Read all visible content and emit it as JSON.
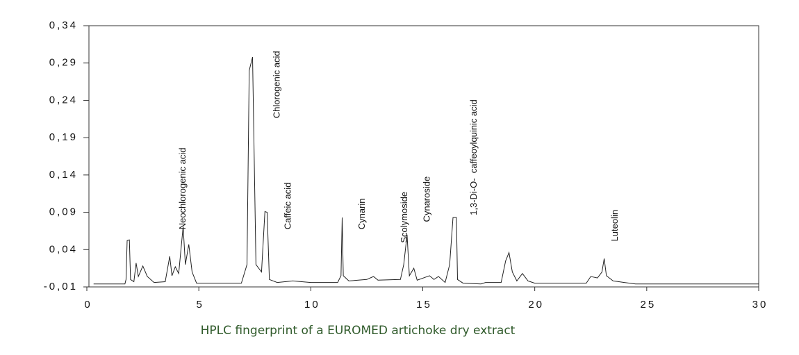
{
  "chart_data": {
    "type": "line",
    "caption": "HPLC fingerprint of a EUROMED artichoke dry extract",
    "xlim": [
      0,
      30
    ],
    "xticks": [
      0,
      5,
      10,
      15,
      20,
      25,
      30
    ],
    "ylim": [
      -0.01,
      0.34
    ],
    "yticks": [
      {
        "value": -0.01,
        "label": "-0,01"
      },
      {
        "value": 0.04,
        "label": "0,04"
      },
      {
        "value": 0.09,
        "label": "0,09"
      },
      {
        "value": 0.14,
        "label": "0,14"
      },
      {
        "value": 0.19,
        "label": "0,19"
      },
      {
        "value": 0.24,
        "label": "0,24"
      },
      {
        "value": 0.29,
        "label": "0,29"
      },
      {
        "value": 0.34,
        "label": "0,34"
      }
    ],
    "x": [
      0.3,
      1.7,
      1.75,
      1.8,
      1.9,
      1.95,
      2.1,
      2.2,
      2.3,
      2.5,
      2.7,
      3.0,
      3.5,
      3.7,
      3.8,
      3.95,
      4.1,
      4.3,
      4.4,
      4.55,
      4.7,
      4.9,
      6.9,
      7.15,
      7.25,
      7.4,
      7.55,
      7.8,
      7.95,
      8.05,
      8.15,
      8.5,
      9.2,
      10.0,
      11.2,
      11.35,
      11.4,
      11.45,
      11.7,
      12.5,
      12.8,
      13.0,
      14.0,
      14.15,
      14.3,
      14.4,
      14.6,
      14.75,
      15.3,
      15.5,
      15.7,
      16.0,
      16.2,
      16.35,
      16.5,
      16.55,
      16.8,
      17.6,
      17.8,
      18.5,
      18.7,
      18.85,
      19.0,
      19.2,
      19.45,
      19.7,
      20.0,
      22.3,
      22.5,
      22.8,
      23.0,
      23.1,
      23.2,
      23.5,
      24.0,
      24.5,
      30.0
    ],
    "series": [
      {
        "color": "#222222",
        "values": [
          -0.006,
          -0.006,
          0.0,
          0.052,
          0.053,
          0.0,
          -0.003,
          0.022,
          0.004,
          0.018,
          0.004,
          -0.004,
          -0.003,
          0.031,
          0.005,
          0.017,
          0.008,
          0.071,
          0.02,
          0.047,
          0.01,
          -0.005,
          -0.005,
          0.02,
          0.28,
          0.298,
          0.02,
          0.01,
          0.091,
          0.09,
          0.0,
          -0.004,
          -0.002,
          -0.004,
          -0.004,
          0.005,
          0.083,
          0.005,
          -0.002,
          0.0,
          0.004,
          -0.001,
          0.0,
          0.02,
          0.06,
          0.005,
          0.015,
          -0.001,
          0.005,
          0.0,
          0.004,
          -0.004,
          0.02,
          0.083,
          0.083,
          0.0,
          -0.005,
          -0.006,
          -0.004,
          -0.004,
          0.025,
          0.036,
          0.01,
          -0.002,
          0.008,
          -0.002,
          -0.005,
          -0.005,
          0.004,
          0.002,
          0.01,
          0.028,
          0.005,
          -0.002,
          -0.004,
          -0.006,
          -0.006
        ]
      }
    ],
    "annotations": [
      {
        "text": "Neochlorogenic acid",
        "x": 4.3,
        "y": 0.067
      },
      {
        "text": "Chlorogenic acid",
        "x": 8.5,
        "y": 0.216
      },
      {
        "text": "Caffeic acid",
        "x": 9.0,
        "y": 0.067
      },
      {
        "text": "Cynarin",
        "x": 12.3,
        "y": 0.067
      },
      {
        "text": "Scolymoside",
        "x": 14.2,
        "y": 0.049
      },
      {
        "text": "Cynaroside",
        "x": 15.2,
        "y": 0.077
      },
      {
        "text": "1,3-Di-O-  caffeoylquinic acid",
        "x": 17.3,
        "y": 0.086
      },
      {
        "text": "Luteolin",
        "x": 23.6,
        "y": 0.051
      }
    ]
  }
}
